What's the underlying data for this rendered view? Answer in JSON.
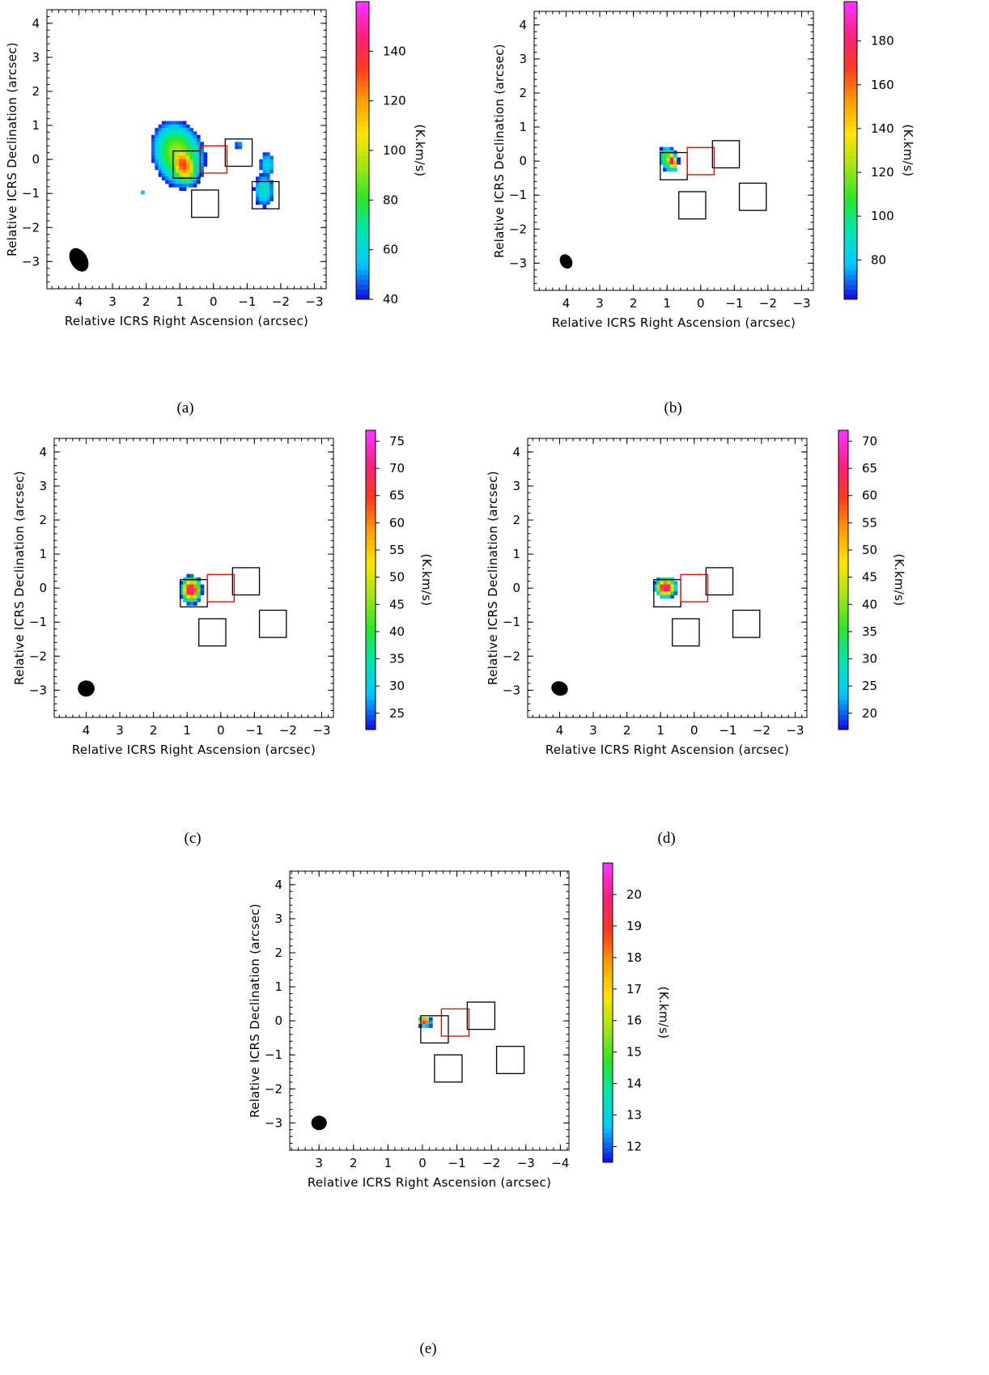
{
  "colormap": [
    "#1414e6",
    "#00c8ff",
    "#00e6b4",
    "#28e628",
    "#a0e614",
    "#ffe600",
    "#ffa000",
    "#ff3c1e",
    "#ff1e78",
    "#ff32ff"
  ],
  "box_colors": {
    "black": "#000000",
    "red": "#e60000"
  },
  "chart_data": [
    {
      "panel": "a",
      "type": "heatmap",
      "caption": "(a)",
      "xlabel": "Relative ICRS Right Ascension (arcsec)",
      "ylabel": "Relative ICRS Declination (arcsec)",
      "colorbar_label": "(K.km/s)",
      "xlim": [
        4.95,
        -3.35
      ],
      "ylim": [
        -3.8,
        4.4
      ],
      "xticks": [
        4,
        3,
        2,
        1,
        0,
        -1,
        -2,
        -3
      ],
      "yticks": [
        4,
        3,
        2,
        1,
        0,
        -1,
        -2,
        -3
      ],
      "colorbar": {
        "min": 40,
        "max": 160,
        "ticks": [
          40,
          60,
          80,
          100,
          120,
          140
        ]
      },
      "boxes": [
        {
          "color": "black",
          "ra": [
            1.2,
            0.4
          ],
          "dec": [
            -0.55,
            0.25
          ]
        },
        {
          "color": "red",
          "ra": [
            0.4,
            -0.4
          ],
          "dec": [
            -0.4,
            0.4
          ]
        },
        {
          "color": "black",
          "ra": [
            -0.35,
            -1.15
          ],
          "dec": [
            -0.2,
            0.6
          ]
        },
        {
          "color": "black",
          "ra": [
            0.65,
            -0.15
          ],
          "dec": [
            -1.7,
            -0.9
          ]
        },
        {
          "color": "black",
          "ra": [
            -1.15,
            -1.95
          ],
          "dec": [
            -1.45,
            -0.65
          ]
        }
      ],
      "beam": {
        "ra": 4.0,
        "dec": -2.95,
        "major": 0.75,
        "minor": 0.5,
        "pa": 60
      },
      "emission": [
        {
          "ra": 1.05,
          "dec": 0.15,
          "sx": 0.6,
          "sy": 0.8,
          "peak": 95,
          "rot": 20
        },
        {
          "ra": 0.9,
          "dec": -0.15,
          "sx": 0.3,
          "sy": 0.45,
          "peak": 135,
          "rot": 20
        },
        {
          "ra": 0.8,
          "dec": -0.35,
          "sx": 0.5,
          "sy": 0.5,
          "peak": 45
        },
        {
          "ra": -1.6,
          "dec": -0.15,
          "sx": 0.25,
          "sy": 0.4,
          "peak": 60
        },
        {
          "ra": -1.5,
          "dec": -0.9,
          "sx": 0.3,
          "sy": 0.5,
          "peak": 65
        },
        {
          "ra": -0.75,
          "dec": 0.42,
          "sx": 0.12,
          "sy": 0.1,
          "peak": 58
        },
        {
          "ra": 2.1,
          "dec": -0.95,
          "sx": 0.07,
          "sy": 0.06,
          "peak": 55
        }
      ]
    },
    {
      "panel": "b",
      "type": "heatmap",
      "caption": "(b)",
      "xlabel": "Relative ICRS Right Ascension (arcsec)",
      "ylabel": "Relative ICRS Declination (arcsec)",
      "colorbar_label": "(K.km/s)",
      "xlim": [
        4.95,
        -3.35
      ],
      "ylim": [
        -3.8,
        4.4
      ],
      "xticks": [
        4,
        3,
        2,
        1,
        0,
        -1,
        -2,
        -3
      ],
      "yticks": [
        4,
        3,
        2,
        1,
        0,
        -1,
        -2,
        -3
      ],
      "colorbar": {
        "min": 62,
        "max": 198,
        "ticks": [
          80,
          100,
          120,
          140,
          160,
          180
        ]
      },
      "boxes": [
        {
          "color": "black",
          "ra": [
            1.2,
            0.4
          ],
          "dec": [
            -0.55,
            0.25
          ]
        },
        {
          "color": "red",
          "ra": [
            0.4,
            -0.4
          ],
          "dec": [
            -0.4,
            0.4
          ]
        },
        {
          "color": "black",
          "ra": [
            -0.35,
            -1.15
          ],
          "dec": [
            -0.2,
            0.6
          ]
        },
        {
          "color": "black",
          "ra": [
            0.65,
            -0.15
          ],
          "dec": [
            -1.7,
            -0.9
          ]
        },
        {
          "color": "black",
          "ra": [
            -1.15,
            -1.95
          ],
          "dec": [
            -1.45,
            -0.65
          ]
        }
      ],
      "beam": {
        "ra": 4.0,
        "dec": -2.95,
        "major": 0.45,
        "minor": 0.35,
        "pa": 60
      },
      "emission": [
        {
          "ra": 0.95,
          "dec": 0.05,
          "sx": 0.25,
          "sy": 0.35,
          "peak": 120,
          "rot": 20
        },
        {
          "ra": 0.85,
          "dec": 0.0,
          "sx": 0.12,
          "sy": 0.2,
          "peak": 190,
          "rot": 20
        },
        {
          "ra": 4.35,
          "dec": 2.72,
          "sx": 0.05,
          "sy": 0.06,
          "peak": 70
        },
        {
          "ra": 1.7,
          "dec": 1.62,
          "sx": 0.02,
          "sy": 0.02,
          "peak": 70
        },
        {
          "ra": 3.5,
          "dec": -0.55,
          "sx": 0.04,
          "sy": 0.03,
          "peak": 70
        },
        {
          "ra": 2.45,
          "dec": -1.82,
          "sx": 0.03,
          "sy": 0.03,
          "peak": 70
        },
        {
          "ra": 3.65,
          "dec": -2.38,
          "sx": 0.03,
          "sy": 0.02,
          "peak": 70
        },
        {
          "ra": -1.0,
          "dec": 0.45,
          "sx": 0.02,
          "sy": 0.03,
          "peak": 70
        },
        {
          "ra": -1.65,
          "dec": -1.25,
          "sx": 0.02,
          "sy": 0.02,
          "peak": 85
        }
      ]
    },
    {
      "panel": "c",
      "type": "heatmap",
      "caption": "(c)",
      "xlabel": "Relative ICRS Right Ascension (arcsec)",
      "ylabel": "Relative ICRS Declination (arcsec)",
      "colorbar_label": "(K.km/s)",
      "xlim": [
        4.95,
        -3.35
      ],
      "ylim": [
        -3.8,
        4.4
      ],
      "xticks": [
        4,
        3,
        2,
        1,
        0,
        -1,
        -2,
        -3
      ],
      "yticks": [
        4,
        3,
        2,
        1,
        0,
        -1,
        -2,
        -3
      ],
      "colorbar": {
        "min": 22,
        "max": 77,
        "ticks": [
          25,
          30,
          35,
          40,
          45,
          50,
          55,
          60,
          65,
          70,
          75
        ]
      },
      "boxes": [
        {
          "color": "black",
          "ra": [
            1.2,
            0.4
          ],
          "dec": [
            -0.55,
            0.25
          ]
        },
        {
          "color": "red",
          "ra": [
            0.4,
            -0.4
          ],
          "dec": [
            -0.4,
            0.4
          ]
        },
        {
          "color": "black",
          "ra": [
            -0.35,
            -1.15
          ],
          "dec": [
            -0.2,
            0.6
          ]
        },
        {
          "color": "black",
          "ra": [
            0.65,
            -0.15
          ],
          "dec": [
            -1.7,
            -0.9
          ]
        },
        {
          "color": "black",
          "ra": [
            -1.15,
            -1.95
          ],
          "dec": [
            -1.45,
            -0.65
          ]
        }
      ],
      "beam": {
        "ra": 4.0,
        "dec": -2.95,
        "major": 0.5,
        "minor": 0.48,
        "pa": 0
      },
      "emission": [
        {
          "ra": 0.88,
          "dec": -0.05,
          "sx": 0.22,
          "sy": 0.28,
          "peak": 74
        },
        {
          "ra": 0.9,
          "dec": 0.0,
          "sx": 0.35,
          "sy": 0.38,
          "peak": 24
        }
      ]
    },
    {
      "panel": "d",
      "type": "heatmap",
      "caption": "(d)",
      "xlabel": "Relative ICRS Right Ascension (arcsec)",
      "ylabel": "Relative ICRS Declination (arcsec)",
      "colorbar_label": "(K.km/s)",
      "xlim": [
        4.95,
        -3.35
      ],
      "ylim": [
        -3.8,
        4.4
      ],
      "xticks": [
        4,
        3,
        2,
        1,
        0,
        -1,
        -2,
        -3
      ],
      "yticks": [
        4,
        3,
        2,
        1,
        0,
        -1,
        -2,
        -3
      ],
      "colorbar": {
        "min": 17,
        "max": 72,
        "ticks": [
          20,
          25,
          30,
          35,
          40,
          45,
          50,
          55,
          60,
          65,
          70
        ]
      },
      "boxes": [
        {
          "color": "black",
          "ra": [
            1.2,
            0.4
          ],
          "dec": [
            -0.55,
            0.25
          ]
        },
        {
          "color": "red",
          "ra": [
            0.4,
            -0.4
          ],
          "dec": [
            -0.4,
            0.4
          ]
        },
        {
          "color": "black",
          "ra": [
            -0.35,
            -1.15
          ],
          "dec": [
            -0.2,
            0.6
          ]
        },
        {
          "color": "black",
          "ra": [
            0.65,
            -0.15
          ],
          "dec": [
            -1.7,
            -0.9
          ]
        },
        {
          "color": "black",
          "ra": [
            -1.15,
            -1.95
          ],
          "dec": [
            -1.45,
            -0.65
          ]
        }
      ],
      "beam": {
        "ra": 4.0,
        "dec": -2.95,
        "major": 0.5,
        "minor": 0.42,
        "pa": 20
      },
      "emission": [
        {
          "ra": 0.85,
          "dec": 0.02,
          "sx": 0.22,
          "sy": 0.2,
          "peak": 70
        },
        {
          "ra": 0.85,
          "dec": 0.0,
          "sx": 0.45,
          "sy": 0.38,
          "peak": 22
        },
        {
          "ra": -3.32,
          "dec": 4.15,
          "sx": 0.05,
          "sy": 0.05,
          "peak": 22
        }
      ]
    },
    {
      "panel": "e",
      "type": "heatmap",
      "caption": "(e)",
      "xlabel": "Relative ICRS Right Ascension (arcsec)",
      "ylabel": "Relative ICRS Declination (arcsec)",
      "colorbar_label": "(K.km/s)",
      "xlim": [
        3.85,
        -4.25
      ],
      "ylim": [
        -3.8,
        4.4
      ],
      "xticks": [
        3,
        2,
        1,
        0,
        -1,
        -2,
        -3,
        -4
      ],
      "yticks": [
        4,
        3,
        2,
        1,
        0,
        -1,
        -2,
        -3
      ],
      "colorbar": {
        "min": 11.5,
        "max": 21,
        "ticks": [
          12,
          13,
          14,
          15,
          16,
          17,
          18,
          19,
          20
        ]
      },
      "boxes": [
        {
          "color": "black",
          "ra": [
            0.05,
            -0.75
          ],
          "dec": [
            -0.65,
            0.15
          ]
        },
        {
          "color": "red",
          "ra": [
            -0.55,
            -1.35
          ],
          "dec": [
            -0.45,
            0.35
          ]
        },
        {
          "color": "black",
          "ra": [
            -1.3,
            -2.1
          ],
          "dec": [
            -0.25,
            0.55
          ]
        },
        {
          "color": "black",
          "ra": [
            -0.35,
            -1.15
          ],
          "dec": [
            -1.8,
            -1.0
          ]
        },
        {
          "color": "black",
          "ra": [
            -2.15,
            -2.95
          ],
          "dec": [
            -1.55,
            -0.75
          ]
        }
      ],
      "beam": {
        "ra": 3.0,
        "dec": -3.0,
        "major": 0.45,
        "minor": 0.42,
        "pa": 0
      },
      "emission": [
        {
          "ra": -0.05,
          "dec": -0.02,
          "sx": 0.18,
          "sy": 0.14,
          "peak": 20.8
        },
        {
          "ra": -0.1,
          "dec": -0.05,
          "sx": 0.42,
          "sy": 0.35,
          "peak": 13.0
        }
      ]
    }
  ]
}
